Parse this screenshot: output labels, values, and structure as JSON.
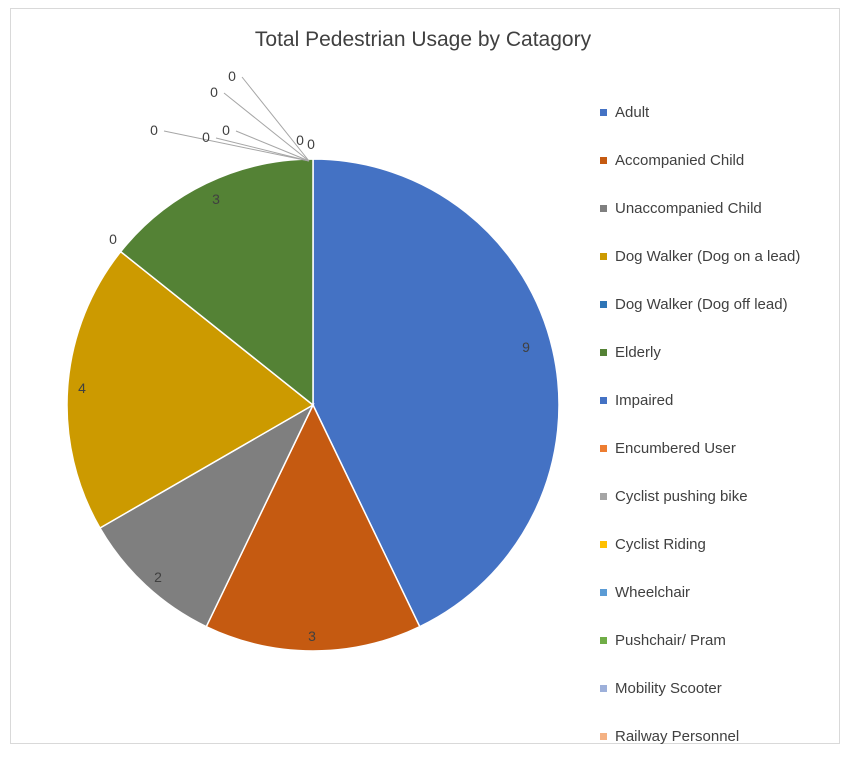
{
  "chart_data": {
    "type": "pie",
    "title": "Total Pedestrian Usage by Catagory",
    "legend_position": "right",
    "series": [
      {
        "name": "Adult",
        "value": 9,
        "color": "#4472C4"
      },
      {
        "name": "Accompanied Child",
        "value": 3,
        "color": "#C55A11"
      },
      {
        "name": "Unaccompanied Child",
        "value": 2,
        "color": "#7F7F7F"
      },
      {
        "name": "Dog Walker (Dog on a lead)",
        "value": 4,
        "color": "#CC9A00"
      },
      {
        "name": "Dog Walker (Dog off lead)",
        "value": 0,
        "color": "#2E75B6"
      },
      {
        "name": "Elderly",
        "value": 3,
        "color": "#548235"
      },
      {
        "name": "Impaired",
        "value": 0,
        "color": "#4472C4"
      },
      {
        "name": "Encumbered User",
        "value": 0,
        "color": "#ED7D31"
      },
      {
        "name": "Cyclist pushing bike",
        "value": 0,
        "color": "#A5A5A5"
      },
      {
        "name": "Cyclist Riding",
        "value": 0,
        "color": "#FFC000"
      },
      {
        "name": "Wheelchair",
        "value": 0,
        "color": "#5B9BD5"
      },
      {
        "name": "Pushchair/ Pram",
        "value": 0,
        "color": "#70AD47"
      },
      {
        "name": "Mobility Scooter",
        "value": 0,
        "color": "#9DB0DA"
      },
      {
        "name": "Railway Personnel",
        "value": 0,
        "color": "#F4B183"
      }
    ]
  }
}
